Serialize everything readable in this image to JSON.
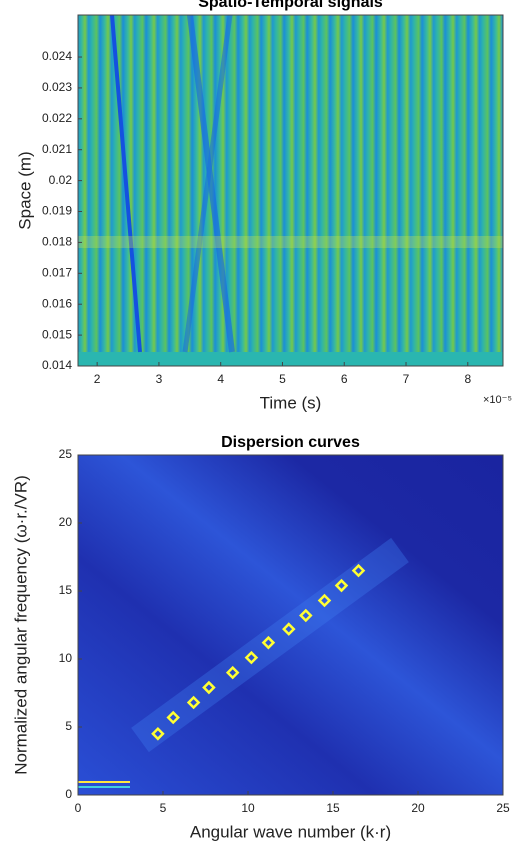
{
  "chart_data": [
    {
      "type": "heatmap",
      "title": "Spatio-Temporal signals",
      "x_label": "Time (s)",
      "y_label": "Space (m)",
      "x_exponent_label": "×10⁻⁵",
      "xlim": [
        1.69,
        8.57
      ],
      "xticks": [
        2,
        3,
        4,
        5,
        6,
        7,
        8
      ],
      "ylim": [
        0.014,
        0.02536
      ],
      "yticks": [
        0.014,
        0.015,
        0.016,
        0.017,
        0.018,
        0.019,
        0.02,
        0.021,
        0.022,
        0.023,
        0.024
      ]
    },
    {
      "type": "scatter",
      "title": "Dispersion curves",
      "x_label": "Angular wave number  (k·r)",
      "y_label": "Normalized angular frequency (ω·r./VR)",
      "xlim": [
        0,
        25
      ],
      "xticks": [
        0,
        5,
        10,
        15,
        20,
        25
      ],
      "ylim": [
        0,
        25
      ],
      "yticks": [
        0,
        5,
        10,
        15,
        20,
        25
      ],
      "color": "#ffff33",
      "x": [
        4.7,
        5.6,
        6.8,
        7.7,
        9.1,
        10.2,
        11.2,
        12.4,
        13.4,
        14.5,
        15.5,
        16.5
      ],
      "values": [
        4.5,
        5.7,
        6.8,
        7.9,
        9.0,
        10.1,
        11.2,
        12.2,
        13.2,
        14.3,
        15.4,
        16.5
      ]
    }
  ]
}
